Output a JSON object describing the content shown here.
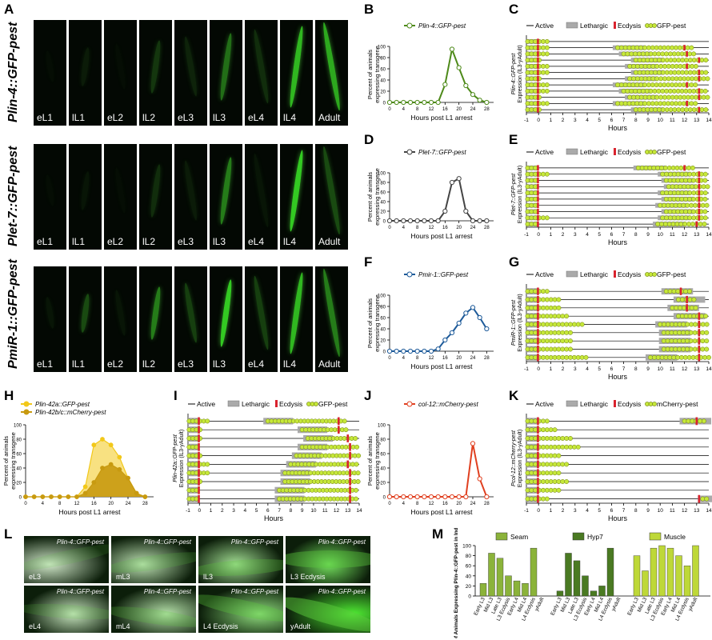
{
  "panel_letters": {
    "A": "A",
    "B": "B",
    "C": "C",
    "D": "D",
    "E": "E",
    "F": "F",
    "G": "G",
    "H": "H",
    "I": "I",
    "J": "J",
    "K": "K",
    "L": "L",
    "M": "M"
  },
  "rows_a": [
    {
      "label": "Plin-4::GFP-pest",
      "stages": [
        "eL1",
        "lL1",
        "eL2",
        "lL2",
        "eL3",
        "lL3",
        "eL4",
        "lL4",
        "Adult"
      ]
    },
    {
      "label": "Plet-7::GFP-pest",
      "stages": [
        "eL1",
        "lL1",
        "eL2",
        "lL2",
        "eL3",
        "lL3",
        "eL4",
        "lL4",
        "Adult"
      ]
    },
    {
      "label": "PmiR-1::GFP-pest",
      "stages": [
        "eL1",
        "lL1",
        "eL2",
        "lL2",
        "eL3",
        "lL3",
        "eL4",
        "lL4",
        "Adult"
      ]
    }
  ],
  "line_axes": {
    "ylabel1": "Percent of animals",
    "ylabel2": "expressing transgene",
    "xlabel": "Hours post L1 arrest",
    "xticks": [
      "0",
      "4",
      "8",
      "12",
      "16",
      "20",
      "24",
      "28"
    ],
    "yticks": [
      "0",
      "20",
      "40",
      "60",
      "80",
      "100"
    ]
  },
  "chart_data": [
    {
      "id": "B",
      "type": "line",
      "x": [
        0,
        2,
        4,
        6,
        8,
        10,
        12,
        14,
        16,
        18,
        20,
        22,
        24,
        26,
        28
      ],
      "series": [
        {
          "name": "Plin-4::GFP-pest",
          "color": "#4e8a1a",
          "values": [
            0,
            0,
            0,
            0,
            0,
            0,
            0,
            0,
            32,
            95,
            62,
            30,
            14,
            4,
            0
          ]
        }
      ],
      "ylim": [
        0,
        100
      ],
      "xlim": [
        0,
        30
      ]
    },
    {
      "id": "D",
      "type": "line",
      "x": [
        0,
        2,
        4,
        6,
        8,
        10,
        12,
        14,
        16,
        18,
        20,
        22,
        24,
        26,
        28
      ],
      "series": [
        {
          "name": "Plet-7::GFP-pest",
          "color": "#444444",
          "values": [
            0,
            0,
            0,
            0,
            0,
            0,
            0,
            0,
            20,
            80,
            88,
            20,
            0,
            0,
            0
          ]
        }
      ],
      "ylim": [
        0,
        100
      ],
      "xlim": [
        0,
        30
      ]
    },
    {
      "id": "F",
      "type": "line",
      "x": [
        0,
        2,
        4,
        6,
        8,
        10,
        12,
        14,
        16,
        18,
        20,
        22,
        24,
        26,
        28
      ],
      "series": [
        {
          "name": "Pmir-1::GFP-pest",
          "color": "#1d5a99",
          "values": [
            0,
            0,
            0,
            0,
            0,
            0,
            0,
            4,
            20,
            33,
            50,
            68,
            78,
            60,
            40
          ]
        }
      ],
      "ylim": [
        0,
        100
      ],
      "xlim": [
        0,
        30
      ]
    },
    {
      "id": "H",
      "type": "area",
      "x": [
        0,
        2,
        4,
        6,
        8,
        10,
        12,
        14,
        16,
        18,
        20,
        22,
        24,
        26,
        28
      ],
      "series": [
        {
          "name": "Plin-42a::GFP-pest",
          "color": "#f2c81a",
          "values": [
            0,
            0,
            0,
            0,
            0,
            0,
            0,
            14,
            72,
            80,
            72,
            55,
            26,
            5,
            0
          ]
        },
        {
          "name": "Plin-42b/c::mCherry-pest",
          "color": "#c89a10",
          "values": [
            0,
            0,
            0,
            0,
            0,
            0,
            0,
            5,
            20,
            40,
            45,
            38,
            26,
            5,
            0
          ]
        }
      ],
      "ylim": [
        0,
        100
      ],
      "xlim": [
        0,
        30
      ]
    },
    {
      "id": "J",
      "type": "line",
      "x": [
        0,
        2,
        4,
        6,
        8,
        10,
        12,
        14,
        16,
        18,
        20,
        22,
        24,
        26,
        28
      ],
      "series": [
        {
          "name": "col-12::mCherry-pest",
          "color": "#e04020",
          "values": [
            0,
            0,
            0,
            0,
            0,
            0,
            0,
            0,
            0,
            0,
            0,
            0,
            74,
            25,
            0
          ]
        }
      ],
      "ylim": [
        0,
        100
      ],
      "xlim": [
        0,
        30
      ]
    },
    {
      "id": "M",
      "type": "bar",
      "categories": [
        "Early L3",
        "Mid L3",
        "Late L3",
        "L3 Ecdysis",
        "Early L4",
        "Mid L4",
        "L4 Ecdysis",
        "yAdult"
      ],
      "ylabel": "% of Animals Expressing Plin-4::GFP-pest in Indicated Tissue",
      "yticks": [
        "0",
        "20",
        "40",
        "60",
        "80",
        "100"
      ],
      "series": [
        {
          "name": "Seam",
          "color": "#8bb33a",
          "values": [
            25,
            85,
            75,
            40,
            30,
            25,
            95,
            0
          ]
        },
        {
          "name": "Hyp7",
          "color": "#4a7a22",
          "values": [
            10,
            85,
            70,
            40,
            10,
            20,
            95,
            0
          ]
        },
        {
          "name": "Muscle",
          "color": "#bed838",
          "values": [
            80,
            50,
            95,
            100,
            95,
            80,
            60,
            100
          ]
        }
      ],
      "ylim": [
        0,
        100
      ]
    }
  ],
  "timeline_legend": {
    "active": "Active",
    "lethargic": "Lethargic",
    "ecdysis": "Ecdysis",
    "gfp": "GFP-pest",
    "mcherry": "mCherry-pest"
  },
  "timeline_axis": {
    "xlabel": "Hours",
    "ticks": [
      "-1",
      "0",
      "1",
      "2",
      "3",
      "4",
      "5",
      "6",
      "7",
      "8",
      "9",
      "10",
      "11",
      "12",
      "13",
      "14"
    ]
  },
  "timelines": [
    {
      "id": "C",
      "ylabel1": "Plin-4::GFP-pest",
      "ylabel2": "Expression (lL3-yAdult)",
      "marker": "gfp",
      "rows": [
        [
          [
            -0.9,
            0.8
          ]
        ],
        [
          [
            -0.9,
            0.8
          ],
          [
            6.5,
            12.8
          ]
        ],
        [
          [
            -0.9,
            0.8
          ],
          [
            7,
            13
          ]
        ],
        [
          [
            -0.9,
            0.1
          ],
          [
            8,
            14
          ]
        ],
        [
          [
            -0.9,
            0.8
          ],
          [
            7.5,
            13
          ]
        ],
        [
          [
            -0.9,
            0.8
          ],
          [
            8,
            14
          ]
        ],
        [
          [
            -0.9,
            0.1
          ],
          [
            7.5,
            14
          ]
        ],
        [
          [
            -0.9,
            0.8
          ],
          [
            6.5,
            13
          ]
        ],
        [
          [
            -0.9,
            0.8
          ],
          [
            7,
            14
          ]
        ],
        [
          [
            -0.9,
            0.1
          ],
          [
            7.5,
            14
          ]
        ],
        [
          [
            -0.9,
            0.8
          ],
          [
            6.5,
            13
          ]
        ],
        [
          [
            -0.9,
            0.1
          ],
          [
            8,
            14
          ]
        ]
      ]
    },
    {
      "id": "E",
      "ylabel1": "Plet-7::GFP-pest",
      "ylabel2": "Expression (lL3-yAdult)",
      "marker": "gfp",
      "rows": [
        [
          [
            -0.9,
            -0.1
          ],
          [
            8.2,
            12.8
          ]
        ],
        [
          [
            -0.9,
            0.8
          ],
          [
            10.2,
            14
          ]
        ],
        [
          [
            -0.9,
            -0.1
          ],
          [
            10.5,
            14
          ]
        ],
        [
          [
            -0.9,
            -0.1
          ],
          [
            10.7,
            14
          ]
        ],
        [
          [
            -0.9,
            -0.1
          ],
          [
            10.2,
            14
          ]
        ],
        [
          [
            -0.9,
            -0.1
          ],
          [
            10.5,
            14
          ]
        ],
        [
          [
            -0.9,
            -0.1
          ],
          [
            10,
            14
          ]
        ],
        [
          [
            -0.9,
            -0.1
          ],
          [
            10.5,
            14
          ]
        ],
        [
          [
            -0.9,
            0.8
          ],
          [
            10.2,
            14
          ]
        ],
        [
          [
            -0.9,
            -0.1
          ],
          [
            9.8,
            13.8
          ]
        ]
      ]
    },
    {
      "id": "G",
      "ylabel1": "PmiR-1::GFP-pest",
      "ylabel2": "Expression (lL3-yAdult)",
      "marker": "gfp",
      "rows": [
        [
          [
            -0.9,
            0.8
          ],
          [
            10.5,
            12.5
          ]
        ],
        [
          [
            -0.9,
            1.8
          ],
          [
            11.5,
            13
          ]
        ],
        [
          [
            -0.9,
            1.8
          ],
          [
            11,
            13
          ]
        ],
        [
          [
            -0.9,
            2.5
          ],
          [
            11.5,
            14
          ]
        ],
        [
          [
            -0.9,
            3.8
          ],
          [
            10,
            14
          ]
        ],
        [
          [
            -0.9,
            2.8
          ],
          [
            10.3,
            14
          ]
        ],
        [
          [
            -0.9,
            2.8
          ],
          [
            10.3,
            14
          ]
        ],
        [
          [
            -0.9,
            2.8
          ],
          [
            10.3,
            14
          ]
        ],
        [
          [
            -0.9,
            4.2
          ],
          [
            9.2,
            14
          ]
        ]
      ]
    },
    {
      "id": "I",
      "ylabel1": "Plin-42a::GFP-pest",
      "ylabel2": "Expression (lL3-yAdult)",
      "marker": "gfp",
      "rows": [
        [
          [
            -0.9,
            0.8
          ],
          [
            6,
            13
          ]
        ],
        [
          [
            -0.9,
            0.3
          ],
          [
            9,
            13
          ]
        ],
        [
          [
            -0.9,
            0.3
          ],
          [
            9.5,
            13.8
          ]
        ],
        [
          [
            -0.9,
            -0.1
          ],
          [
            9,
            14
          ]
        ],
        [
          [
            -0.9,
            0.3
          ],
          [
            8.5,
            14
          ]
        ],
        [
          [
            -0.9,
            0.8
          ],
          [
            8,
            13.8
          ]
        ],
        [
          [
            -0.9,
            0.8
          ],
          [
            7.5,
            14
          ]
        ],
        [
          [
            -0.9,
            0.3
          ],
          [
            7.5,
            14
          ]
        ],
        [
          [
            -0.9,
            -0.1
          ],
          [
            7,
            14
          ]
        ],
        [
          [
            -0.9,
            -0.1
          ],
          [
            7,
            14
          ]
        ]
      ]
    },
    {
      "id": "K",
      "ylabel1": "Pcol-12::mCherry-pest",
      "ylabel2": "Expression (lL3-yAdult)",
      "marker": "mcherry",
      "rows": [
        [
          [
            -0.9,
            0.8
          ],
          [
            12,
            13.8
          ]
        ],
        [
          [
            -0.9,
            1.5
          ]
        ],
        [
          [
            -0.9,
            2.8
          ]
        ],
        [
          [
            -0.9,
            3.3
          ]
        ],
        [
          [
            -0.9,
            1.8
          ]
        ],
        [
          [
            -0.9,
            2.3
          ]
        ],
        [
          [
            -0.9,
            1.8
          ]
        ],
        [
          [
            -0.9,
            2.3
          ]
        ],
        [
          [
            -0.9,
            1.8
          ]
        ],
        [
          [
            -0.9,
            0.8
          ],
          [
            13.5,
            14
          ]
        ]
      ]
    }
  ],
  "micro": [
    {
      "title": "Plin-4::GFP-pest",
      "stage": "eL3"
    },
    {
      "title": "Plin-4::GFP-pest",
      "stage": "mL3"
    },
    {
      "title": "Plin-4::GFP-pest",
      "stage": "lL3"
    },
    {
      "title": "Plin-4::GFP-pest",
      "stage": "L3 Ecdysis"
    },
    {
      "title": "Plin-4::GFP-pest",
      "stage": "eL4"
    },
    {
      "title": "Plin-4::GFP-pest",
      "stage": "mL4"
    },
    {
      "title": "Plin-4::GFP-pest",
      "stage": "L4 Ecdysis"
    },
    {
      "title": "Plin-4::GFP-pest",
      "stage": "yAdult"
    }
  ]
}
